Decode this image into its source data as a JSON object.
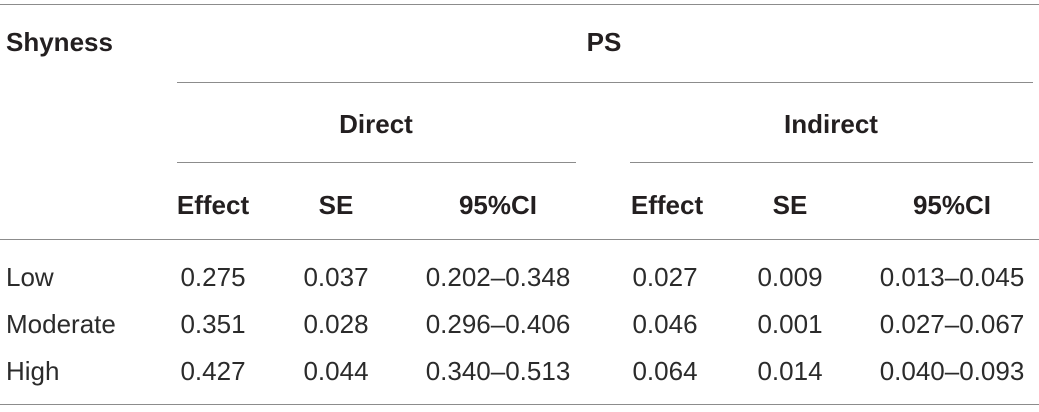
{
  "table": {
    "stub_header": "Shyness",
    "top_header": "PS",
    "groups": [
      "Direct",
      "Indirect"
    ],
    "columns": [
      "Effect",
      "SE",
      "95%CI",
      "Effect",
      "SE",
      "95%CI"
    ],
    "rows": [
      {
        "label": "Low",
        "cells": [
          "0.275",
          "0.037",
          "0.202–0.348",
          "0.027",
          "0.009",
          "0.013–0.045"
        ]
      },
      {
        "label": "Moderate",
        "cells": [
          "0.351",
          "0.028",
          "0.296–0.406",
          "0.046",
          "0.001",
          "0.027–0.067"
        ]
      },
      {
        "label": "High",
        "cells": [
          "0.427",
          "0.044",
          "0.340–0.513",
          "0.064",
          "0.014",
          "0.040–0.093"
        ]
      }
    ]
  }
}
